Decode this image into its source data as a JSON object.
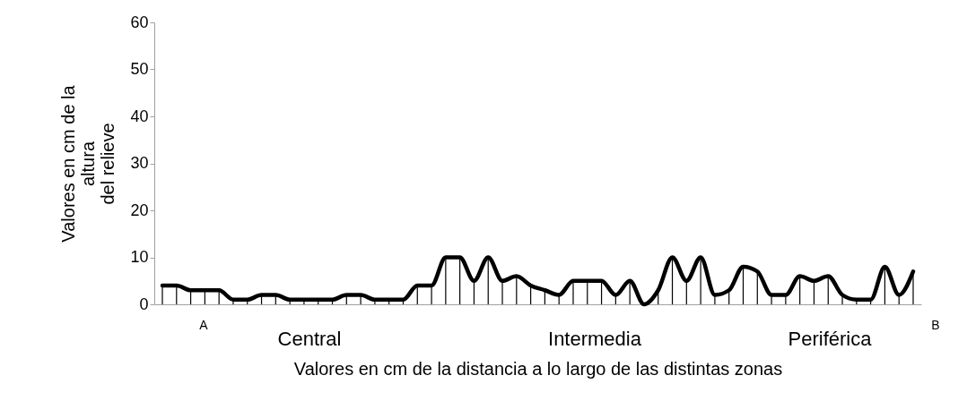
{
  "chart_data": {
    "type": "line",
    "xlabel": "Valores en cm de la distancia a lo largo de las distintas zonas",
    "ylabel": "Valores en cm de la\naltura\ndel relieve",
    "categories": [
      null,
      null,
      null,
      null,
      null,
      null,
      null,
      null,
      null,
      null,
      null,
      null,
      null,
      null,
      null,
      null,
      null,
      null,
      null,
      null,
      null,
      null,
      null,
      null,
      null,
      null,
      null,
      null,
      null,
      null,
      null,
      null,
      null,
      null,
      null,
      null,
      null,
      null,
      null,
      null,
      null,
      null,
      null,
      null,
      null,
      null,
      null,
      null,
      null,
      null,
      null,
      null,
      null,
      null
    ],
    "series": [
      {
        "color": "#000000",
        "values": [
          4,
          4,
          3,
          3,
          3,
          1,
          1,
          2,
          2,
          1,
          1,
          1,
          1,
          2,
          2,
          1,
          1,
          1,
          4,
          4,
          10,
          10,
          5,
          10,
          5,
          6,
          4,
          3,
          2,
          5,
          5,
          5,
          2,
          5,
          0,
          3,
          10,
          5,
          10,
          2,
          3,
          8,
          7,
          2,
          2,
          6,
          5,
          6,
          2,
          1,
          1,
          8,
          2,
          7
        ]
      }
    ],
    "ylim": [
      0,
      60
    ],
    "yticks": [
      0,
      10,
      20,
      30,
      40,
      50,
      60
    ],
    "tick_labels": "y",
    "annotations": [
      "A",
      "Central",
      "Intermedia",
      "Periférica",
      "B"
    ]
  }
}
